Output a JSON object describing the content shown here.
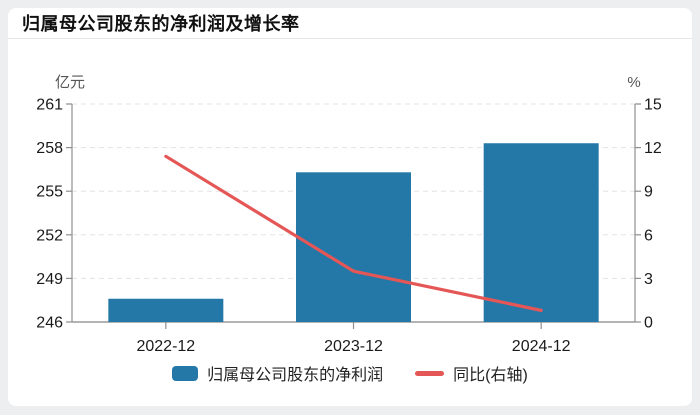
{
  "page": {
    "background_color": "#edeef0",
    "card_background": "#ffffff"
  },
  "header": {
    "title": "归属母公司股东的净利润及增长率"
  },
  "legend": {
    "items": [
      {
        "label": "归属母公司股东的净利润",
        "swatch": "bar",
        "color": "#2478a8"
      },
      {
        "label": "同比(右轴)",
        "swatch": "line",
        "color": "#e45756"
      }
    ]
  },
  "chart_data": {
    "type": "bar+line",
    "title": "归属母公司股东的净利润及增长率",
    "categories": [
      "2022-12",
      "2023-12",
      "2024-12"
    ],
    "series": [
      {
        "name": "归属母公司股东的净利润",
        "type": "bar",
        "axis": "left",
        "unit": "亿元",
        "color": "#2478a8",
        "values": [
          247.6,
          256.3,
          258.3
        ]
      },
      {
        "name": "同比(右轴)",
        "type": "line",
        "axis": "right",
        "unit": "%",
        "color": "#e45756",
        "values": [
          11.4,
          3.5,
          0.8
        ]
      }
    ],
    "left_axis": {
      "label": "亿元",
      "min": 246,
      "max": 261,
      "ticks": [
        246,
        249,
        252,
        255,
        258,
        261
      ]
    },
    "right_axis": {
      "label": "%",
      "min": 0,
      "max": 15,
      "ticks": [
        0,
        3,
        6,
        9,
        12,
        15
      ]
    },
    "grid": "horizontal-dashed",
    "legend_position": "bottom",
    "style": {
      "grid_color": "#e3e3e3",
      "axis_color": "#8f8f8f",
      "bottom_axis_color": "#9a9a9a",
      "tick_label_color": "#1a1a1a",
      "unit_label_color": "#555555"
    }
  }
}
